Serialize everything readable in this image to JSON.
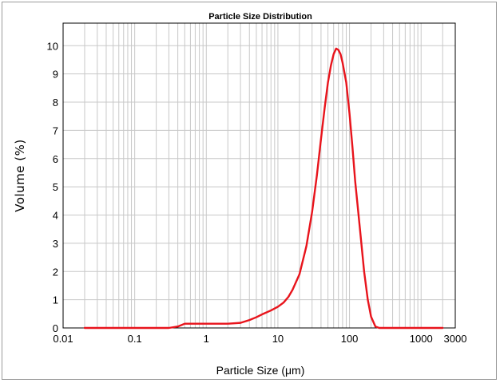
{
  "chart_data": {
    "type": "line",
    "title": "Particle Size Distribution",
    "xlabel": "Particle Size (μm)",
    "ylabel": "Volume (%)",
    "xscale": "log",
    "xlim": [
      0.01,
      3000
    ],
    "ylim": [
      0,
      10.8
    ],
    "grid": true,
    "x_ticks": [
      {
        "value": 0.01,
        "label": "0.01"
      },
      {
        "value": 0.1,
        "label": "0.1"
      },
      {
        "value": 1,
        "label": "1"
      },
      {
        "value": 10,
        "label": "10"
      },
      {
        "value": 100,
        "label": "100"
      },
      {
        "value": 1000,
        "label": "1000"
      },
      {
        "value": 3000,
        "label": "3000"
      }
    ],
    "y_ticks": [
      0,
      1,
      2,
      3,
      4,
      5,
      6,
      7,
      8,
      9,
      10
    ],
    "series": [
      {
        "color": "#e8141c",
        "x": [
          0.02,
          0.1,
          0.3,
          0.4,
          0.5,
          0.6,
          0.8,
          1,
          1.5,
          2,
          3,
          4,
          5,
          6,
          8,
          10,
          12,
          14,
          16,
          20,
          25,
          30,
          35,
          40,
          45,
          50,
          55,
          60,
          65,
          70,
          75,
          80,
          90,
          100,
          110,
          120,
          140,
          160,
          180,
          200,
          230,
          260,
          300,
          500,
          1000,
          2000
        ],
        "y": [
          0,
          0,
          0,
          0.05,
          0.15,
          0.15,
          0.15,
          0.15,
          0.15,
          0.15,
          0.18,
          0.28,
          0.38,
          0.48,
          0.62,
          0.75,
          0.9,
          1.1,
          1.35,
          1.9,
          2.9,
          4.1,
          5.4,
          6.7,
          7.8,
          8.7,
          9.3,
          9.7,
          9.9,
          9.85,
          9.7,
          9.4,
          8.7,
          7.6,
          6.4,
          5.2,
          3.5,
          2.0,
          1.0,
          0.4,
          0.05,
          0,
          0,
          0,
          0,
          0
        ]
      }
    ]
  }
}
